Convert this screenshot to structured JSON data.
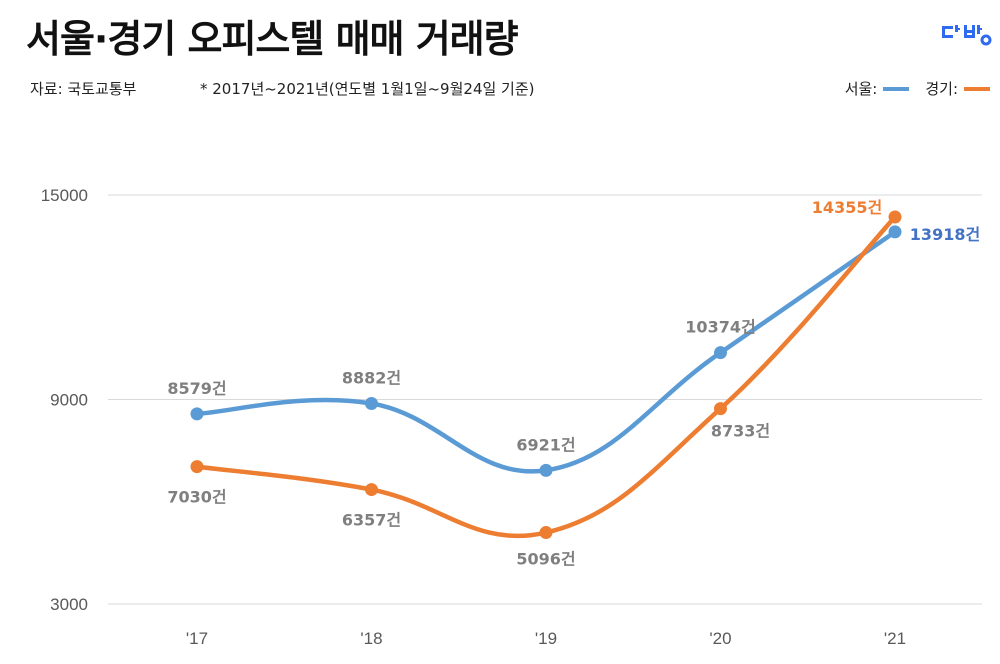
{
  "title": "서울·경기 오피스텔 매매 거래량",
  "source": "자료: 국토교통부",
  "note": "* 2017년~2021년(연도별 1월1일~9월24일 기준)",
  "logo_text": "다방",
  "chart_data": {
    "type": "line",
    "categories": [
      "'17",
      "'18",
      "'19",
      "'20",
      "'21"
    ],
    "series": [
      {
        "name": "서울:",
        "color": "#5b9bd5",
        "label_color": "#4472c4",
        "values": [
          8579,
          8882,
          6921,
          10374,
          13918
        ],
        "labels": [
          "8579건",
          "8882건",
          "6921건",
          "10374건",
          "13918건"
        ]
      },
      {
        "name": "경기:",
        "color": "#ed7d31",
        "label_color": "#ed7d31",
        "values": [
          7030,
          6357,
          5096,
          8733,
          14355
        ],
        "labels": [
          "7030건",
          "6357건",
          "5096건",
          "8733건",
          "14355건"
        ]
      }
    ],
    "y_ticks": [
      "15000",
      "9000",
      "3000"
    ],
    "ylim": [
      3000,
      15000
    ],
    "grid": true,
    "legend": "top-right",
    "data_label_color": "#7f7f7f"
  }
}
